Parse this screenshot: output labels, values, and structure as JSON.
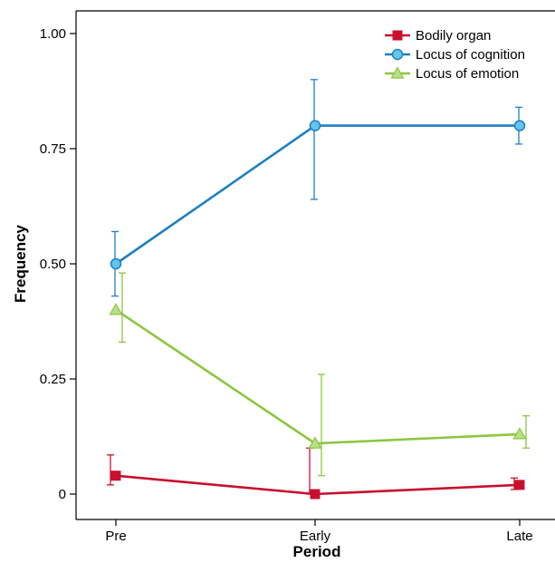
{
  "chart_data": {
    "type": "line",
    "xlabel": "Period",
    "ylabel": "Frequency",
    "categories": [
      "Pre",
      "Early",
      "Late"
    ],
    "ylim": [
      -0.05,
      1.05
    ],
    "yticks": [
      0,
      0.25,
      0.5,
      0.75,
      1.0
    ],
    "ytick_labels": [
      "0",
      "0.25",
      "0.50",
      "0.75",
      "1.00"
    ],
    "grid": false,
    "legend_position": "top-right",
    "series": [
      {
        "name": "Bodily organ",
        "color": "#c8102e",
        "marker": "square",
        "values": [
          0.04,
          0.0,
          0.02
        ],
        "error_low": [
          0.02,
          0.0,
          0.01
        ],
        "error_high": [
          0.085,
          0.1,
          0.035
        ]
      },
      {
        "name": "Locus of cognition",
        "color": "#1f7fc0",
        "marker": "circle",
        "values": [
          0.5,
          0.8,
          0.8
        ],
        "error_low": [
          0.43,
          0.64,
          0.76
        ],
        "error_high": [
          0.57,
          0.9,
          0.84
        ]
      },
      {
        "name": "Locus of emotion",
        "color": "#8dc63f",
        "marker": "triangle",
        "values": [
          0.4,
          0.11,
          0.13
        ],
        "error_low": [
          0.33,
          0.04,
          0.1
        ],
        "error_high": [
          0.48,
          0.26,
          0.17
        ]
      }
    ]
  }
}
